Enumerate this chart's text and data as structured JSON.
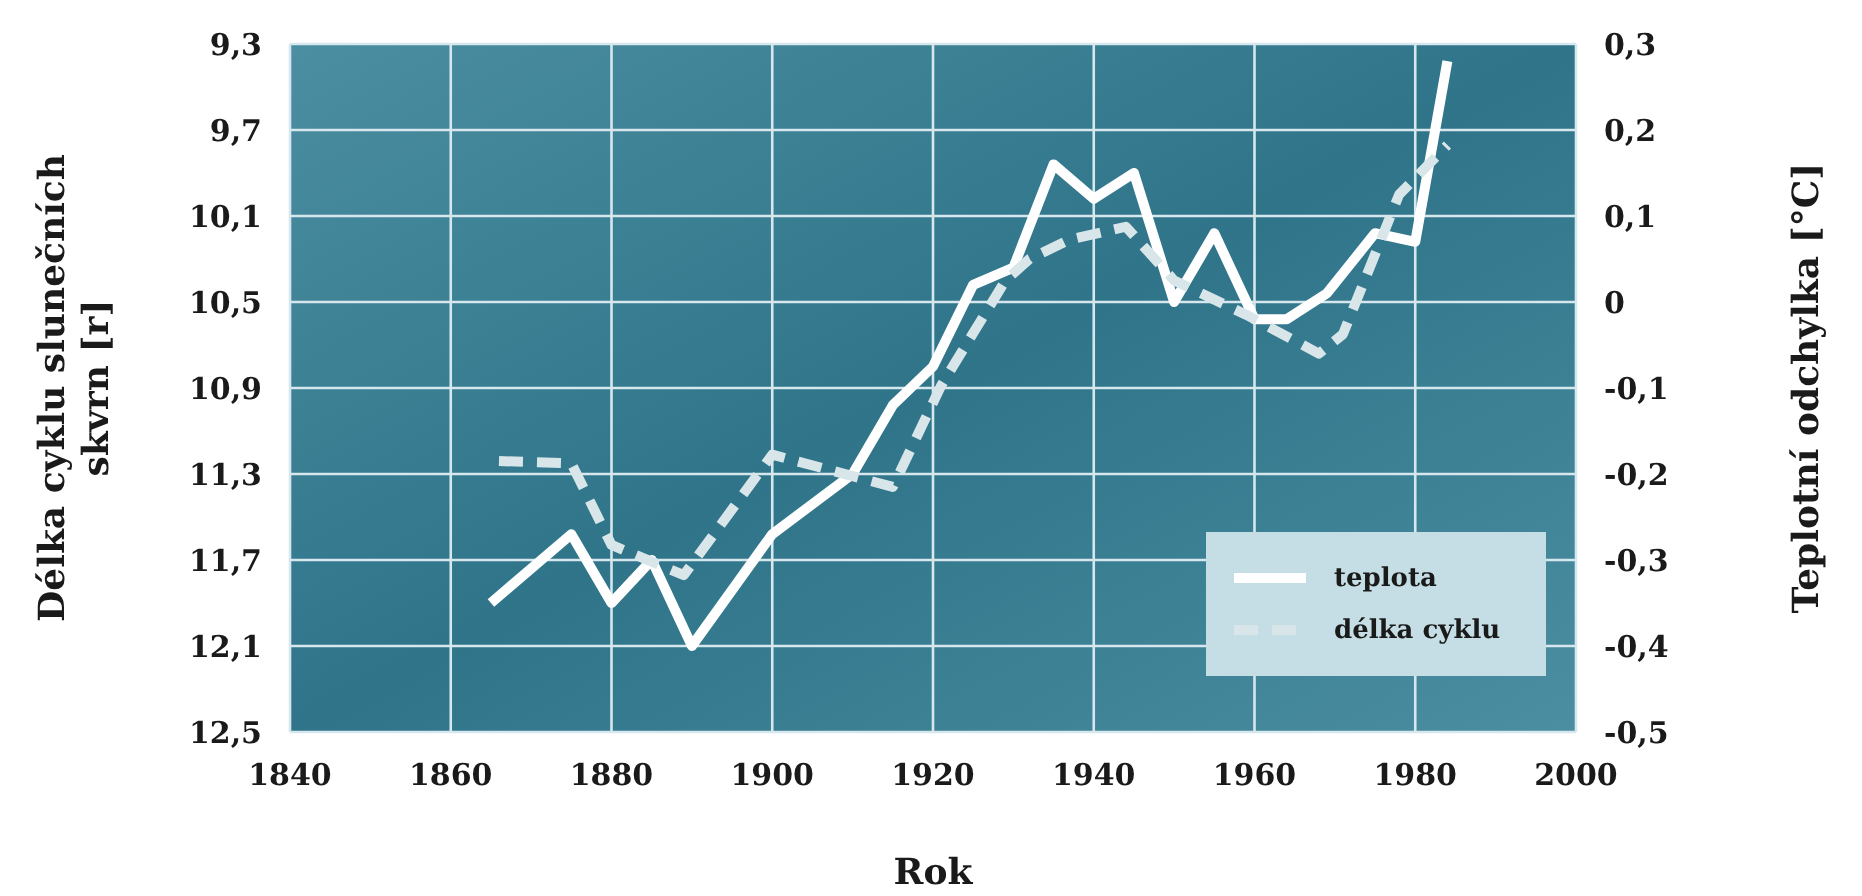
{
  "chart_data": {
    "type": "line",
    "xlabel": "Rok",
    "ylabel": "Délka cyklu slunečních skvrn [r]",
    "y2label": "Teplotní odchylka [°C]",
    "xlim": [
      1840,
      2000
    ],
    "xticks": [
      1840,
      1860,
      1880,
      1900,
      1920,
      1940,
      1960,
      1980,
      2000
    ],
    "ylim": [
      12.5,
      9.3
    ],
    "yticks": [
      {
        "value": 9.3,
        "label": "9,3"
      },
      {
        "value": 9.7,
        "label": "9,7"
      },
      {
        "value": 10.1,
        "label": "10,1"
      },
      {
        "value": 10.5,
        "label": "10,5"
      },
      {
        "value": 10.9,
        "label": "10,9"
      },
      {
        "value": 11.3,
        "label": "11,3"
      },
      {
        "value": 11.7,
        "label": "11,7"
      },
      {
        "value": 12.1,
        "label": "12,1"
      },
      {
        "value": 12.5,
        "label": "12,5"
      }
    ],
    "y2lim": [
      -0.5,
      0.3
    ],
    "y2ticks": [
      {
        "value": -0.5,
        "label": "-0,5"
      },
      {
        "value": -0.4,
        "label": "-0,4"
      },
      {
        "value": -0.3,
        "label": "-0,3"
      },
      {
        "value": -0.2,
        "label": "-0,2"
      },
      {
        "value": -0.1,
        "label": "-0,1"
      },
      0,
      {
        "value": 0.1,
        "label": "0,1"
      },
      {
        "value": 0.2,
        "label": "0,2"
      },
      {
        "value": 0.3,
        "label": "0,3"
      }
    ],
    "grid": true,
    "legend": "bottom right",
    "marker": "none",
    "series": [
      {
        "name": "teplota",
        "color": "#ffffff",
        "axis": "y2",
        "line_style": "solid",
        "x": [
          1865,
          1875,
          1880,
          1885,
          1890,
          1900,
          1910,
          1915,
          1920,
          1925,
          1930,
          1935,
          1940,
          1945,
          1950,
          1955,
          1960,
          1964,
          1969,
          1975,
          1980,
          1984
        ],
        "values": [
          -0.35,
          -0.27,
          -0.35,
          -0.3,
          -0.4,
          -0.27,
          -0.2,
          -0.12,
          -0.075,
          0.02,
          0.04,
          0.16,
          0.12,
          0.15,
          0.0,
          0.08,
          -0.02,
          -0.02,
          0.01,
          0.08,
          0.07,
          0.28
        ]
      },
      {
        "name": "délka cyklu",
        "color": "#d8e6ea",
        "line_style": "dashed",
        "x": [
          1866,
          1875,
          1880,
          1889,
          1900,
          1915,
          1921,
          1929,
          1932,
          1937,
          1944,
          1950,
          1959,
          1968,
          1971,
          1978,
          1984
        ],
        "values": [
          11.24,
          11.25,
          11.63,
          11.77,
          11.21,
          11.36,
          10.89,
          10.4,
          10.3,
          10.21,
          10.15,
          10.4,
          10.56,
          10.74,
          10.65,
          10.0,
          9.77
        ]
      }
    ]
  }
}
